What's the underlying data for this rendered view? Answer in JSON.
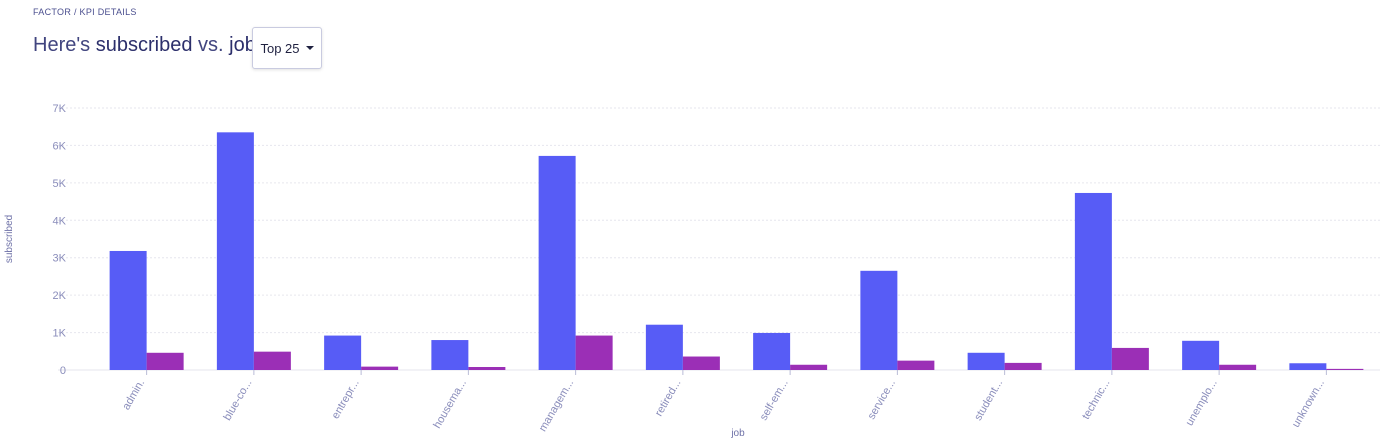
{
  "header": {
    "breadcrumb": "FACTOR / KPI DETAILS",
    "title_prefix": "Here's",
    "title_measure": "subscribed",
    "title_vs": "vs.",
    "title_dimension": "job",
    "topn_label": "Top 25"
  },
  "colors": {
    "series_a": "#575cf6",
    "series_b": "#9b2fb6",
    "grid": "#e6e6ee"
  },
  "chart_data": {
    "type": "bar",
    "xlabel": "job",
    "ylabel": "subscribed",
    "ylim": [
      0,
      7000
    ],
    "yticks": [
      0,
      1000,
      2000,
      3000,
      4000,
      5000,
      6000,
      7000
    ],
    "ytick_labels": [
      "0",
      "1K",
      "2K",
      "3K",
      "4K",
      "5K",
      "6K",
      "7K"
    ],
    "categories": [
      "admin.",
      "blue-co...",
      "entrepr...",
      "housema...",
      "managem...",
      "retired...",
      "self-em...",
      "service...",
      "student...",
      "technic...",
      "unemplo...",
      "unknown..."
    ],
    "series": [
      {
        "values": [
          3180,
          6350,
          920,
          800,
          5720,
          1210,
          990,
          2650,
          460,
          4730,
          780,
          180
        ]
      },
      {
        "values": [
          460,
          490,
          90,
          80,
          920,
          360,
          140,
          250,
          190,
          590,
          140,
          30
        ]
      }
    ],
    "grid": true
  }
}
